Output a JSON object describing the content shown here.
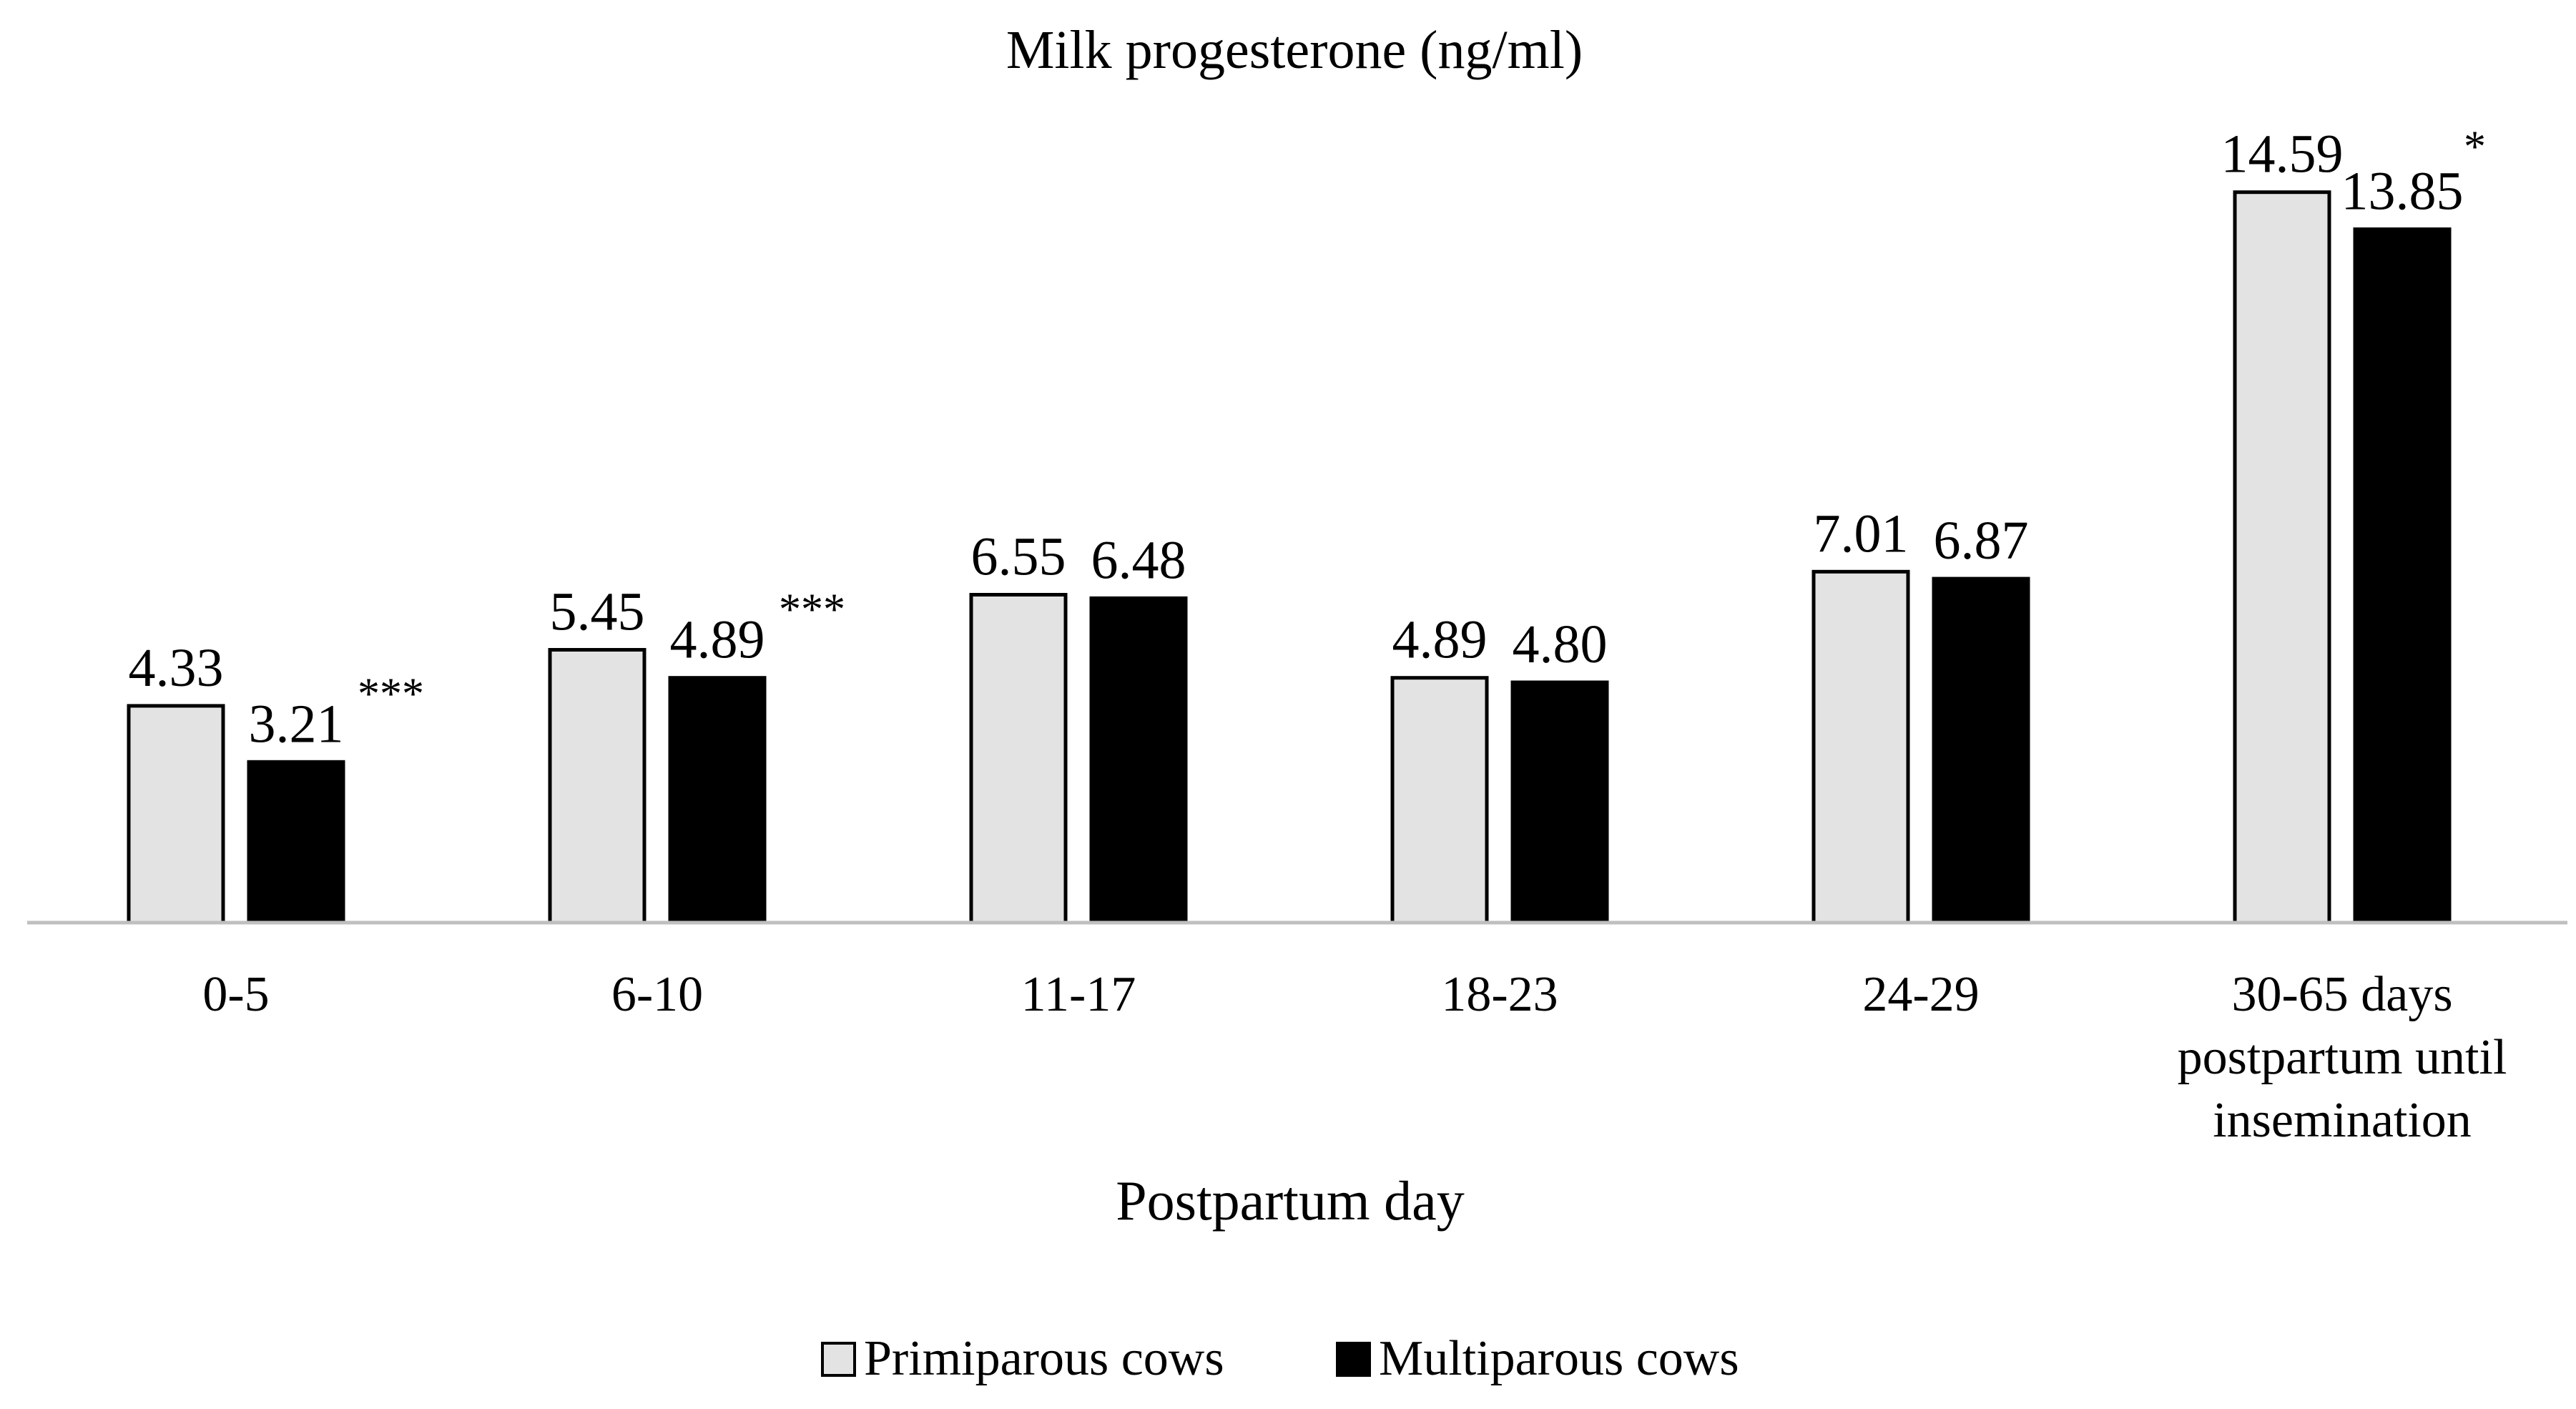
{
  "chart_data": {
    "type": "bar",
    "title": "Milk progesterone (ng/ml)",
    "xlabel": "Postpartum day",
    "ylabel": "",
    "ylim": [
      0,
      15
    ],
    "grid": false,
    "legend_position": "bottom",
    "categories": [
      [
        "0-5"
      ],
      [
        "6-10"
      ],
      [
        "11-17"
      ],
      [
        "18-23"
      ],
      [
        "24-29"
      ],
      [
        "30-65 days",
        "postpartum until",
        "insemination"
      ]
    ],
    "series": [
      {
        "name": "Primiparous cows",
        "color": "#e3e3e3",
        "values": [
          4.33,
          5.45,
          6.55,
          4.89,
          7.01,
          14.59
        ],
        "labels": [
          "4.33",
          "5.45",
          "6.55",
          "4.89",
          "7.01",
          "14.59"
        ]
      },
      {
        "name": "Multiparous cows",
        "color": "#000000",
        "values": [
          3.21,
          4.89,
          6.48,
          4.8,
          6.87,
          13.85
        ],
        "labels": [
          "3.21",
          "4.89",
          "6.48",
          "4.80",
          "6.87",
          "13.85"
        ]
      }
    ],
    "significance": [
      "***",
      "***",
      "",
      "",
      "",
      "*"
    ]
  }
}
